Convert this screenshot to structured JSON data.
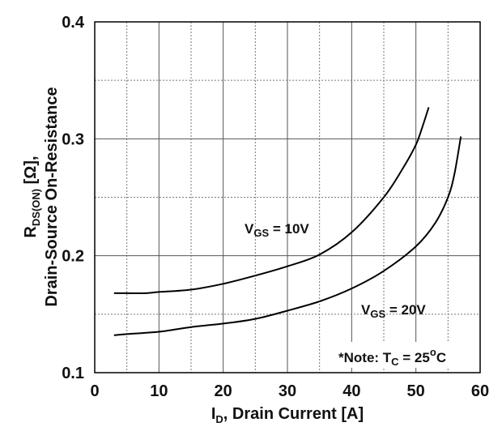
{
  "chart_data": {
    "type": "line",
    "xlabel_main": "I",
    "xlabel_sub": "D",
    "xlabel_rest": ", Drain Current [A]",
    "ylabel_line1_main": "R",
    "ylabel_line1_sub": "DS(ON)",
    "ylabel_line1_rest": " [Ω],",
    "ylabel_line2": "Drain-Source On-Resistance",
    "xlim": [
      0,
      60
    ],
    "ylim": [
      0.1,
      0.4
    ],
    "x_ticks": [
      "0",
      "10",
      "20",
      "30",
      "40",
      "50",
      "60"
    ],
    "y_ticks": [
      "0.1",
      "0.2",
      "0.3",
      "0.4"
    ],
    "grid": true,
    "series": [
      {
        "name": "VGS = 10V",
        "label_main": "V",
        "label_sub": "GS",
        "label_rest": " = 10V",
        "x": [
          3,
          5,
          8,
          10,
          15,
          20,
          25,
          30,
          35,
          40,
          45,
          48,
          50,
          51,
          52
        ],
        "y": [
          0.168,
          0.168,
          0.168,
          0.169,
          0.171,
          0.176,
          0.183,
          0.191,
          0.201,
          0.22,
          0.25,
          0.275,
          0.295,
          0.31,
          0.327
        ]
      },
      {
        "name": "VGS = 20V",
        "label_main": "V",
        "label_sub": "GS",
        "label_rest": " = 20V",
        "x": [
          3,
          5,
          10,
          15,
          20,
          25,
          30,
          35,
          40,
          45,
          50,
          53,
          55,
          56,
          57
        ],
        "y": [
          0.132,
          0.133,
          0.135,
          0.139,
          0.142,
          0.146,
          0.153,
          0.161,
          0.172,
          0.187,
          0.208,
          0.228,
          0.25,
          0.27,
          0.302
        ]
      }
    ],
    "note_main": "*Note: T",
    "note_sub": "C",
    "note_rest": " = 25",
    "note_sup": "o",
    "note_unit": "C"
  }
}
